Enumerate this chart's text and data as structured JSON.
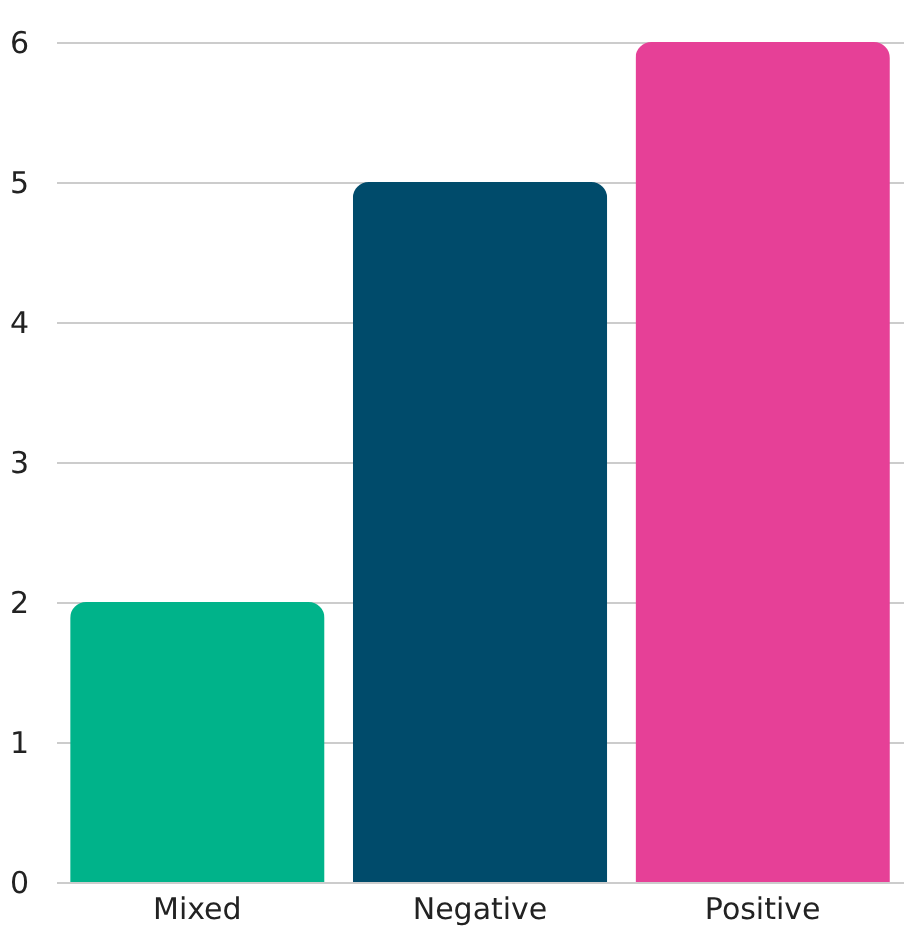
{
  "chart_data": {
    "type": "bar",
    "categories": [
      "Mixed",
      "Negative",
      "Positive"
    ],
    "values": [
      2,
      5,
      6
    ],
    "colors": [
      "#00b38a",
      "#004b6b",
      "#e64097"
    ],
    "ylim": [
      0,
      6
    ],
    "yticks": [
      0,
      1,
      2,
      3,
      4,
      5,
      6
    ],
    "grid": "y"
  }
}
